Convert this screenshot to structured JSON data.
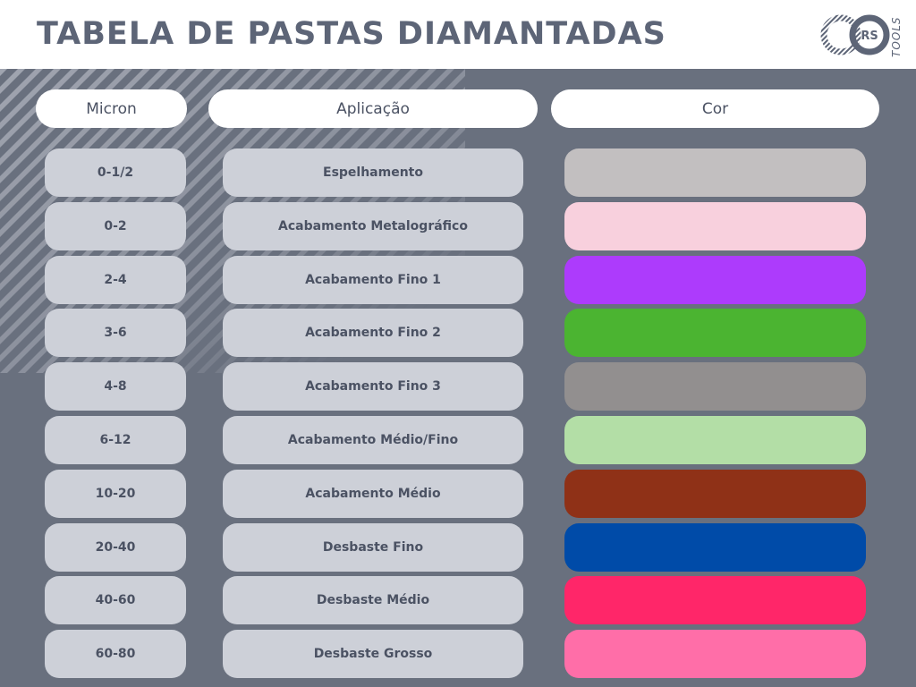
{
  "title": "TABELA DE PASTAS DIAMANTADAS",
  "logo": {
    "mark": "RS",
    "word": "TOOLS"
  },
  "columns": {
    "micron": "Micron",
    "application": "Aplicação",
    "color": "Cor"
  },
  "rows": [
    {
      "micron": "0-1/2",
      "application": "Espelhamento",
      "color": "#c2bfc0"
    },
    {
      "micron": "0-2",
      "application": "Acabamento Metalográfico",
      "color": "#f8d0dd"
    },
    {
      "micron": "2-4",
      "application": "Acabamento Fino 1",
      "color": "#ad3bfc"
    },
    {
      "micron": "3-6",
      "application": "Acabamento Fino 2",
      "color": "#4bb431"
    },
    {
      "micron": "4-8",
      "application": "Acabamento Fino 3",
      "color": "#928f8f"
    },
    {
      "micron": "6-12",
      "application": "Acabamento Médio/Fino",
      "color": "#b3dea6"
    },
    {
      "micron": "10-20",
      "application": "Acabamento Médio",
      "color": "#8f3117"
    },
    {
      "micron": "20-40",
      "application": "Desbaste Fino",
      "color": "#004ba8"
    },
    {
      "micron": "40-60",
      "application": "Desbaste Médio",
      "color": "#ff2669"
    },
    {
      "micron": "60-80",
      "application": "Desbaste Grosso",
      "color": "#ff6ea8"
    }
  ]
}
